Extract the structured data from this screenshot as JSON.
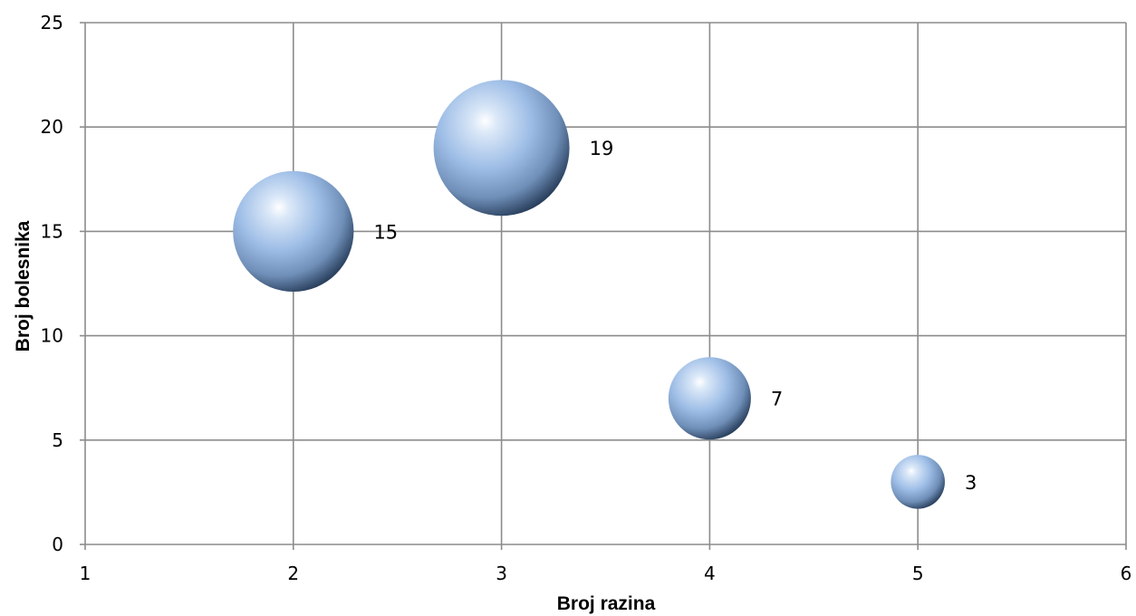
{
  "chart_data": {
    "type": "bubble",
    "title": "",
    "xlabel": "Broj razina",
    "ylabel": "Broj bolesnika",
    "xlim": [
      1,
      6
    ],
    "ylim": [
      0,
      25
    ],
    "xticks": [
      1,
      2,
      3,
      4,
      5,
      6
    ],
    "yticks": [
      0,
      5,
      10,
      15,
      20,
      25
    ],
    "grid": true,
    "legend": "none",
    "bubble_color": "#8fb4e3",
    "bubble_dark": "#1e3048",
    "points": [
      {
        "x": 2,
        "y": 15,
        "size": 15,
        "label": "15"
      },
      {
        "x": 3,
        "y": 19,
        "size": 19,
        "label": "19"
      },
      {
        "x": 4,
        "y": 7,
        "size": 7,
        "label": "7"
      },
      {
        "x": 5,
        "y": 3,
        "size": 3,
        "label": "3"
      }
    ]
  }
}
